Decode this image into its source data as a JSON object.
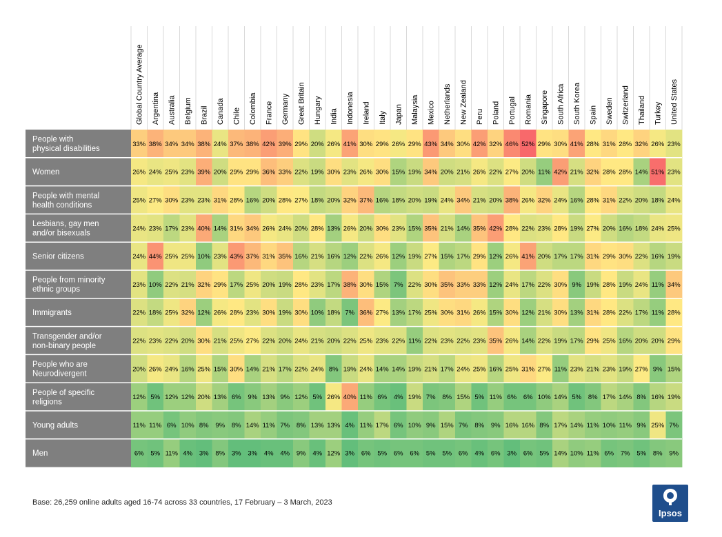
{
  "chart_data": {
    "type": "heatmap",
    "columns": [
      "Global Country Average",
      "Argentina",
      "Australia",
      "Belgium",
      "Brazil",
      "Canada",
      "Chile",
      "Colombia",
      "France",
      "Germany",
      "Great Britain",
      "Hungary",
      "India",
      "Indonesia",
      "Ireland",
      "Italy",
      "Japan",
      "Malaysia",
      "Mexico",
      "Netherlands",
      "New Zealand",
      "Peru",
      "Poland",
      "Portugal",
      "Romania",
      "Singapore",
      "South Africa",
      "South Korea",
      "Spain",
      "Sweden",
      "Switzerland",
      "Thailand",
      "Turkey",
      "United States"
    ],
    "rows": [
      {
        "label": [
          "People with",
          "physical disabilities"
        ],
        "values": [
          33,
          38,
          34,
          34,
          38,
          24,
          37,
          38,
          42,
          39,
          29,
          20,
          26,
          41,
          30,
          29,
          26,
          29,
          43,
          34,
          30,
          42,
          32,
          46,
          52,
          29,
          30,
          41,
          28,
          31,
          28,
          32,
          26,
          23
        ]
      },
      {
        "label": [
          "Women"
        ],
        "values": [
          26,
          24,
          25,
          23,
          39,
          20,
          29,
          29,
          36,
          33,
          22,
          19,
          30,
          23,
          26,
          30,
          15,
          19,
          34,
          20,
          21,
          26,
          22,
          27,
          20,
          11,
          42,
          21,
          32,
          28,
          28,
          14,
          51,
          23
        ]
      },
      {
        "label": [
          "People with mental",
          "health conditions"
        ],
        "values": [
          25,
          27,
          30,
          23,
          23,
          31,
          28,
          16,
          20,
          28,
          27,
          18,
          20,
          32,
          37,
          16,
          18,
          20,
          19,
          24,
          34,
          21,
          20,
          38,
          26,
          32,
          24,
          16,
          28,
          31,
          22,
          20,
          18,
          24
        ]
      },
      {
        "label": [
          "Lesbians, gay men",
          "and/or bisexuals"
        ],
        "values": [
          24,
          23,
          17,
          23,
          40,
          14,
          31,
          34,
          26,
          24,
          20,
          28,
          13,
          26,
          20,
          30,
          23,
          15,
          35,
          21,
          14,
          35,
          42,
          28,
          22,
          23,
          28,
          19,
          27,
          20,
          16,
          18,
          24,
          25
        ]
      },
      {
        "label": [
          "Senior citizens"
        ],
        "values": [
          24,
          44,
          25,
          25,
          10,
          23,
          43,
          37,
          31,
          35,
          16,
          21,
          16,
          12,
          22,
          26,
          12,
          19,
          27,
          15,
          17,
          29,
          12,
          26,
          41,
          20,
          17,
          17,
          31,
          29,
          30,
          22,
          16,
          19
        ]
      },
      {
        "label": [
          "People from minority",
          "ethnic groups"
        ],
        "values": [
          23,
          10,
          22,
          21,
          32,
          29,
          17,
          25,
          20,
          19,
          28,
          23,
          17,
          38,
          30,
          15,
          7,
          22,
          30,
          35,
          33,
          33,
          12,
          24,
          17,
          22,
          30,
          9,
          19,
          28,
          19,
          24,
          11,
          34
        ]
      },
      {
        "label": [
          "Immigrants"
        ],
        "values": [
          22,
          18,
          25,
          32,
          12,
          26,
          28,
          23,
          30,
          19,
          30,
          10,
          18,
          7,
          36,
          27,
          13,
          17,
          25,
          30,
          31,
          26,
          15,
          30,
          12,
          21,
          30,
          13,
          31,
          28,
          22,
          17,
          11,
          28
        ]
      },
      {
        "label": [
          "Transgender and/or",
          "non-binary people"
        ],
        "values": [
          22,
          23,
          22,
          20,
          30,
          21,
          25,
          27,
          22,
          20,
          24,
          21,
          20,
          22,
          25,
          23,
          22,
          11,
          22,
          23,
          22,
          23,
          35,
          26,
          14,
          22,
          19,
          17,
          29,
          25,
          16,
          20,
          20,
          29
        ]
      },
      {
        "label": [
          "People who are",
          "Neurodivergent"
        ],
        "values": [
          20,
          26,
          24,
          16,
          25,
          15,
          30,
          14,
          21,
          17,
          22,
          24,
          8,
          19,
          24,
          14,
          14,
          19,
          21,
          17,
          24,
          25,
          16,
          25,
          31,
          27,
          11,
          23,
          21,
          23,
          19,
          27,
          9,
          15
        ]
      },
      {
        "label": [
          "People of specific",
          "religions"
        ],
        "values": [
          12,
          5,
          12,
          12,
          20,
          13,
          6,
          9,
          13,
          9,
          12,
          5,
          26,
          40,
          11,
          6,
          4,
          19,
          7,
          8,
          15,
          5,
          11,
          6,
          6,
          10,
          14,
          5,
          8,
          17,
          14,
          8,
          16,
          19
        ]
      },
      {
        "label": [
          "Young adults"
        ],
        "values": [
          11,
          11,
          6,
          10,
          8,
          9,
          8,
          14,
          11,
          7,
          8,
          13,
          13,
          4,
          11,
          17,
          6,
          10,
          9,
          15,
          7,
          8,
          9,
          16,
          16,
          8,
          17,
          14,
          11,
          10,
          11,
          9,
          25,
          7
        ]
      },
      {
        "label": [
          "Men"
        ],
        "values": [
          6,
          5,
          11,
          4,
          3,
          8,
          3,
          3,
          4,
          4,
          9,
          4,
          12,
          3,
          6,
          5,
          6,
          6,
          5,
          5,
          6,
          4,
          6,
          3,
          6,
          5,
          14,
          10,
          11,
          6,
          7,
          5,
          8,
          9
        ]
      }
    ],
    "value_suffix": "%"
  },
  "footer": {
    "base_note": "Base: 26,259 online adults aged 16-74 across 33 countries, 17 February – 3 March, 2023",
    "logo_text": "Ipsos"
  },
  "colors": {
    "label_bg": "#7f7f7f",
    "low": "#63be7b",
    "mid": "#ffeb84",
    "high": "#f8696b",
    "logo_bg": "#1f4e8c"
  }
}
